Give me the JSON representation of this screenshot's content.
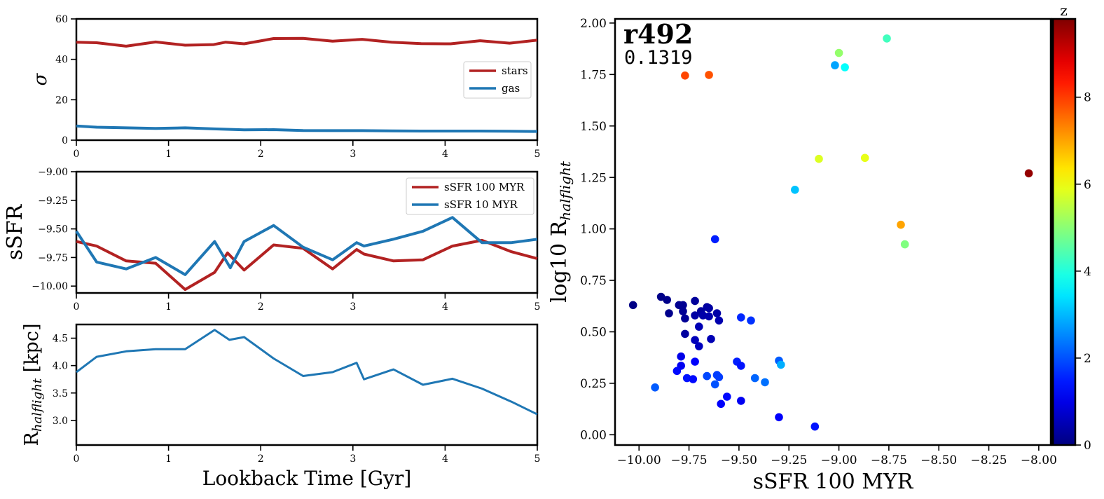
{
  "chart_data": [
    {
      "type": "line",
      "ylabel": "σ",
      "xlim": [
        0,
        5
      ],
      "ylim": [
        0,
        60
      ],
      "xticks": [
        0,
        1,
        2,
        3,
        4,
        5
      ],
      "yticks": [
        0,
        20,
        40,
        60
      ],
      "legend_position": "center-right",
      "series": [
        {
          "name": "stars",
          "color": "#b22222",
          "x": [
            0,
            0.22,
            0.54,
            0.86,
            1.18,
            1.49,
            1.62,
            1.82,
            2.14,
            2.46,
            2.78,
            3.1,
            3.42,
            3.74,
            4.06,
            4.38,
            4.7,
            5.0
          ],
          "y": [
            48.5,
            48.2,
            46.5,
            48.6,
            47.0,
            47.3,
            48.5,
            47.7,
            50.3,
            50.4,
            49.0,
            49.9,
            48.5,
            47.8,
            47.7,
            49.2,
            48.0,
            49.5
          ]
        },
        {
          "name": "gas",
          "color": "#1f77b4",
          "x": [
            0,
            0.22,
            0.54,
            0.86,
            1.18,
            1.49,
            1.82,
            2.14,
            2.46,
            2.78,
            3.1,
            3.42,
            3.74,
            4.06,
            4.38,
            4.7,
            5.0
          ],
          "y": [
            7.0,
            6.4,
            6.1,
            5.8,
            6.1,
            5.6,
            5.1,
            5.2,
            4.8,
            4.7,
            4.7,
            4.6,
            4.5,
            4.5,
            4.5,
            4.4,
            4.3
          ]
        }
      ]
    },
    {
      "type": "line",
      "ylabel": "sSFR",
      "xlim": [
        0,
        5
      ],
      "ylim": [
        -10.06,
        -9.0
      ],
      "xticks": [
        0,
        1,
        2,
        3,
        4,
        5
      ],
      "yticks": [
        -10.0,
        -9.75,
        -9.5,
        -9.25,
        -9.0
      ],
      "legend_position": "top-right",
      "series": [
        {
          "name": "sSFR 100 MYR",
          "color": "#b22222",
          "x": [
            0,
            0.22,
            0.54,
            0.86,
            1.18,
            1.5,
            1.64,
            1.82,
            2.14,
            2.46,
            2.78,
            3.04,
            3.12,
            3.44,
            3.76,
            4.08,
            4.4,
            4.72,
            5.0
          ],
          "y": [
            -9.61,
            -9.65,
            -9.78,
            -9.8,
            -10.03,
            -9.88,
            -9.71,
            -9.86,
            -9.64,
            -9.67,
            -9.85,
            -9.68,
            -9.72,
            -9.78,
            -9.77,
            -9.65,
            -9.6,
            -9.7,
            -9.76
          ]
        },
        {
          "name": "sSFR 10 MYR",
          "color": "#1f77b4",
          "x": [
            0,
            0.22,
            0.54,
            0.86,
            1.18,
            1.5,
            1.67,
            1.82,
            2.14,
            2.46,
            2.78,
            3.04,
            3.12,
            3.44,
            3.76,
            4.08,
            4.4,
            4.72,
            5.0
          ],
          "y": [
            -9.52,
            -9.79,
            -9.85,
            -9.75,
            -9.9,
            -9.61,
            -9.84,
            -9.61,
            -9.47,
            -9.66,
            -9.77,
            -9.62,
            -9.65,
            -9.59,
            -9.52,
            -9.4,
            -9.62,
            -9.62,
            -9.59
          ]
        }
      ]
    },
    {
      "type": "line",
      "ylabel": "R",
      "ylabel_sub": "halflight",
      "ylabel_unit": "[kpc]",
      "xlabel": "Lookback Time [Gyr]",
      "xlim": [
        0,
        5
      ],
      "ylim": [
        2.55,
        4.75
      ],
      "xticks": [
        0,
        1,
        2,
        3,
        4,
        5
      ],
      "yticks": [
        3.0,
        3.5,
        4.0,
        4.5
      ],
      "series": [
        {
          "color": "#1f77b4",
          "x": [
            0,
            0.22,
            0.54,
            0.86,
            1.18,
            1.5,
            1.66,
            1.82,
            2.14,
            2.46,
            2.78,
            3.04,
            3.12,
            3.44,
            3.76,
            4.08,
            4.4,
            4.72,
            5.0
          ],
          "y": [
            3.88,
            4.16,
            4.26,
            4.3,
            4.3,
            4.65,
            4.47,
            4.52,
            4.13,
            3.81,
            3.88,
            4.05,
            3.75,
            3.93,
            3.65,
            3.76,
            3.58,
            3.34,
            3.11
          ]
        }
      ]
    },
    {
      "type": "scatter",
      "title": "r492",
      "subtitle": "0.1319",
      "xlabel": "sSFR 100 MYR",
      "ylabel": "log10 R",
      "ylabel_sub": "halflight",
      "xlim": [
        -10.12,
        -7.94
      ],
      "ylim": [
        -0.05,
        2.02
      ],
      "xticks": [
        -10.0,
        -9.75,
        -9.5,
        -9.25,
        -9.0,
        -8.75,
        -8.5,
        -8.25,
        -8.0
      ],
      "yticks": [
        0.0,
        0.25,
        0.5,
        0.75,
        1.0,
        1.25,
        1.5,
        1.75,
        2.0
      ],
      "colorbar": {
        "label": "z",
        "min": 0,
        "max": 9.8,
        "ticks": [
          0,
          2,
          4,
          6,
          8
        ],
        "colormap": "jet"
      },
      "points": [
        {
          "x": -10.03,
          "y": 0.63,
          "z": 0.05
        },
        {
          "x": -9.89,
          "y": 0.67,
          "z": 0.08
        },
        {
          "x": -9.86,
          "y": 0.655,
          "z": 0.1
        },
        {
          "x": -9.85,
          "y": 0.59,
          "z": 0.12
        },
        {
          "x": -9.8,
          "y": 0.63,
          "z": 0.15
        },
        {
          "x": -9.78,
          "y": 0.63,
          "z": 0.18
        },
        {
          "x": -9.78,
          "y": 0.6,
          "z": 0.2
        },
        {
          "x": -9.77,
          "y": 0.565,
          "z": 0.22
        },
        {
          "x": -9.77,
          "y": 0.49,
          "z": 0.3
        },
        {
          "x": -9.72,
          "y": 0.65,
          "z": 0.25
        },
        {
          "x": -9.72,
          "y": 0.58,
          "z": 0.35
        },
        {
          "x": -9.69,
          "y": 0.6,
          "z": 0.28
        },
        {
          "x": -9.66,
          "y": 0.62,
          "z": 0.3
        },
        {
          "x": -9.65,
          "y": 0.615,
          "z": 0.33
        },
        {
          "x": -9.68,
          "y": 0.58,
          "z": 0.4
        },
        {
          "x": -9.65,
          "y": 0.575,
          "z": 0.42
        },
        {
          "x": -9.61,
          "y": 0.59,
          "z": 0.38
        },
        {
          "x": -9.6,
          "y": 0.555,
          "z": 0.45
        },
        {
          "x": -9.7,
          "y": 0.525,
          "z": 0.5
        },
        {
          "x": -9.72,
          "y": 0.46,
          "z": 0.55
        },
        {
          "x": -9.7,
          "y": 0.43,
          "z": 0.6
        },
        {
          "x": -9.64,
          "y": 0.465,
          "z": 0.5
        },
        {
          "x": -9.79,
          "y": 0.38,
          "z": 1.0
        },
        {
          "x": -9.79,
          "y": 0.335,
          "z": 1.1
        },
        {
          "x": -9.72,
          "y": 0.355,
          "z": 1.2
        },
        {
          "x": -9.81,
          "y": 0.31,
          "z": 1.3
        },
        {
          "x": -9.76,
          "y": 0.275,
          "z": 1.4
        },
        {
          "x": -9.73,
          "y": 0.27,
          "z": 1.3
        },
        {
          "x": -9.62,
          "y": 0.95,
          "z": 1.5
        },
        {
          "x": -9.49,
          "y": 0.57,
          "z": 1.6
        },
        {
          "x": -9.44,
          "y": 0.555,
          "z": 1.7
        },
        {
          "x": -9.51,
          "y": 0.355,
          "z": 1.5
        },
        {
          "x": -9.49,
          "y": 0.335,
          "z": 1.4
        },
        {
          "x": -9.66,
          "y": 0.285,
          "z": 1.9
        },
        {
          "x": -9.61,
          "y": 0.29,
          "z": 1.8
        },
        {
          "x": -9.6,
          "y": 0.28,
          "z": 1.8
        },
        {
          "x": -9.62,
          "y": 0.245,
          "z": 2.0
        },
        {
          "x": -9.56,
          "y": 0.185,
          "z": 1.3
        },
        {
          "x": -9.59,
          "y": 0.15,
          "z": 1.2
        },
        {
          "x": -9.49,
          "y": 0.165,
          "z": 1.1
        },
        {
          "x": -9.92,
          "y": 0.23,
          "z": 2.1
        },
        {
          "x": -9.42,
          "y": 0.275,
          "z": 2.2
        },
        {
          "x": -9.37,
          "y": 0.255,
          "z": 2.3
        },
        {
          "x": -9.3,
          "y": 0.36,
          "z": 2.1
        },
        {
          "x": -9.29,
          "y": 0.34,
          "z": 2.9
        },
        {
          "x": -9.3,
          "y": 0.085,
          "z": 1.2
        },
        {
          "x": -9.12,
          "y": 0.04,
          "z": 1.4
        },
        {
          "x": -9.22,
          "y": 1.19,
          "z": 3.1
        },
        {
          "x": -9.02,
          "y": 1.795,
          "z": 2.8
        },
        {
          "x": -8.97,
          "y": 1.785,
          "z": 3.7
        },
        {
          "x": -9.0,
          "y": 1.855,
          "z": 5.1
        },
        {
          "x": -8.76,
          "y": 1.925,
          "z": 4.3
        },
        {
          "x": -9.1,
          "y": 1.34,
          "z": 5.8
        },
        {
          "x": -8.87,
          "y": 1.345,
          "z": 5.9
        },
        {
          "x": -8.67,
          "y": 0.925,
          "z": 4.9
        },
        {
          "x": -8.69,
          "y": 1.02,
          "z": 7.0
        },
        {
          "x": -9.77,
          "y": 1.745,
          "z": 7.9
        },
        {
          "x": -9.65,
          "y": 1.748,
          "z": 7.8
        },
        {
          "x": -8.05,
          "y": 1.27,
          "z": 9.6
        }
      ]
    }
  ]
}
